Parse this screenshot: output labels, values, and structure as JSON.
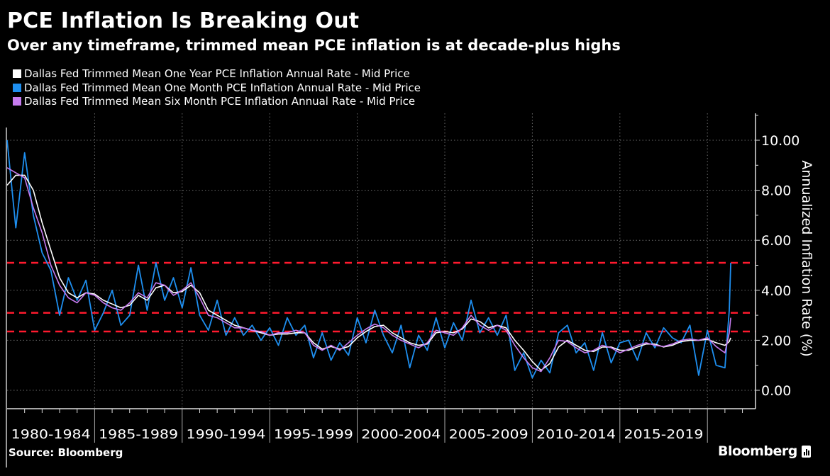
{
  "header": {
    "title": "PCE Inflation Is Breaking Out",
    "subtitle": "Over any timeframe, trimmed mean PCE inflation is at decade-plus highs"
  },
  "footer": {
    "source": "Source: Bloomberg",
    "logo": "Bloomberg"
  },
  "colors": {
    "background": "#000000",
    "one_year": "#ffffff",
    "one_month": "#1e8ff0",
    "six_month": "#c77cf0",
    "reference": "#ff1a2e",
    "grid": "#777777"
  },
  "chart_data": {
    "type": "line",
    "title": "PCE Inflation Is Breaking Out",
    "subtitle": "Over any timeframe, trimmed mean PCE inflation is at decade-plus highs",
    "xlabel": "",
    "ylabel": "Annualized Inflation Rate (%)",
    "ylim": [
      -0.75,
      11.1
    ],
    "xlim": [
      "1980-01",
      "2022-06"
    ],
    "y_ticks": [
      "0.00",
      "2.00",
      "4.00",
      "6.00",
      "8.00",
      "10.00"
    ],
    "x_tick_labels": [
      "1980-1984",
      "1985-1989",
      "1990-1994",
      "1995-1999",
      "2000-2004",
      "2005-2009",
      "2010-2014",
      "2015-2019"
    ],
    "y_axis_side": "right",
    "grid": true,
    "legend_position": "top-left",
    "reference_lines": [
      5.1,
      3.1,
      2.35
    ],
    "x": [
      "1980-01",
      "1980-07",
      "1981-01",
      "1981-07",
      "1982-01",
      "1982-07",
      "1983-01",
      "1983-07",
      "1984-01",
      "1984-07",
      "1985-01",
      "1985-07",
      "1986-01",
      "1986-07",
      "1987-01",
      "1987-07",
      "1988-01",
      "1988-07",
      "1989-01",
      "1989-07",
      "1990-01",
      "1990-07",
      "1991-01",
      "1991-07",
      "1992-01",
      "1992-07",
      "1993-01",
      "1993-07",
      "1994-01",
      "1994-07",
      "1995-01",
      "1995-07",
      "1996-01",
      "1996-07",
      "1997-01",
      "1997-07",
      "1998-01",
      "1998-07",
      "1999-01",
      "1999-07",
      "2000-01",
      "2000-07",
      "2001-01",
      "2001-07",
      "2002-01",
      "2002-07",
      "2003-01",
      "2003-07",
      "2004-01",
      "2004-07",
      "2005-01",
      "2005-07",
      "2006-01",
      "2006-07",
      "2007-01",
      "2007-07",
      "2008-01",
      "2008-07",
      "2009-01",
      "2009-07",
      "2010-01",
      "2010-07",
      "2011-01",
      "2011-07",
      "2012-01",
      "2012-07",
      "2013-01",
      "2013-07",
      "2014-01",
      "2014-07",
      "2015-01",
      "2015-07",
      "2016-01",
      "2016-07",
      "2017-01",
      "2017-07",
      "2018-01",
      "2018-07",
      "2019-01",
      "2019-07",
      "2020-01",
      "2020-07",
      "2021-01",
      "2021-04",
      "2021-05"
    ],
    "series": [
      {
        "name": "Dallas Fed Trimmed Mean One Year PCE Inflation Annual Rate - Mid Price",
        "color": "#ffffff",
        "values": [
          8.2,
          8.6,
          8.6,
          8.0,
          6.7,
          5.6,
          4.5,
          3.9,
          3.7,
          3.9,
          3.85,
          3.6,
          3.45,
          3.3,
          3.4,
          3.8,
          3.6,
          4.1,
          4.2,
          3.9,
          3.95,
          4.2,
          3.9,
          3.2,
          3.0,
          2.8,
          2.6,
          2.5,
          2.4,
          2.3,
          2.2,
          2.25,
          2.25,
          2.3,
          2.3,
          1.9,
          1.65,
          1.75,
          1.65,
          1.75,
          2.1,
          2.35,
          2.55,
          2.6,
          2.3,
          2.1,
          1.9,
          1.8,
          1.85,
          2.3,
          2.35,
          2.3,
          2.45,
          2.85,
          2.75,
          2.5,
          2.6,
          2.5,
          2.0,
          1.6,
          1.15,
          0.8,
          1.07,
          1.73,
          2.0,
          1.8,
          1.6,
          1.55,
          1.73,
          1.73,
          1.6,
          1.6,
          1.73,
          1.85,
          1.85,
          1.73,
          1.8,
          1.95,
          2.0,
          2.0,
          2.04,
          1.9,
          1.8,
          1.95,
          2.1
        ]
      },
      {
        "name": "Dallas Fed Trimmed Mean One Month PCE Inflation Annual Rate - Mid Price",
        "color": "#1e8ff0",
        "values": [
          10.0,
          6.5,
          9.5,
          7.0,
          5.5,
          4.8,
          3.0,
          4.5,
          3.6,
          4.4,
          2.4,
          3.1,
          4.0,
          2.6,
          3.0,
          5.0,
          3.2,
          5.1,
          3.6,
          4.5,
          3.3,
          4.9,
          3.0,
          2.4,
          3.6,
          2.2,
          2.9,
          2.2,
          2.6,
          2.0,
          2.5,
          1.8,
          2.9,
          2.2,
          2.6,
          1.3,
          2.3,
          1.2,
          1.9,
          1.4,
          2.9,
          1.9,
          3.2,
          2.2,
          1.5,
          2.6,
          0.9,
          2.2,
          1.6,
          2.9,
          1.7,
          2.7,
          2.0,
          3.6,
          2.3,
          2.9,
          2.2,
          3.0,
          0.8,
          1.5,
          0.5,
          1.2,
          0.7,
          2.3,
          2.6,
          1.5,
          1.9,
          0.8,
          2.3,
          1.1,
          1.9,
          2.0,
          1.2,
          2.3,
          1.7,
          2.5,
          2.1,
          1.9,
          2.6,
          0.6,
          2.4,
          1.0,
          0.9,
          3.2,
          5.1
        ]
      },
      {
        "name": "Dallas Fed Trimmed Mean Six Month PCE Inflation Annual Rate - Mid Price",
        "color": "#c77cf0",
        "values": [
          8.9,
          8.7,
          8.5,
          7.3,
          6.3,
          5.0,
          4.2,
          3.7,
          3.5,
          3.9,
          3.8,
          3.5,
          3.3,
          3.2,
          3.5,
          3.9,
          3.7,
          4.3,
          4.2,
          3.8,
          4.0,
          4.3,
          3.7,
          3.0,
          2.9,
          2.7,
          2.5,
          2.5,
          2.4,
          2.35,
          2.2,
          2.3,
          2.3,
          2.4,
          2.3,
          1.8,
          1.6,
          1.8,
          1.6,
          1.9,
          2.2,
          2.45,
          2.65,
          2.5,
          2.2,
          2.0,
          1.85,
          1.7,
          1.9,
          2.4,
          2.3,
          2.2,
          2.5,
          3.0,
          2.6,
          2.4,
          2.6,
          2.4,
          1.8,
          1.3,
          0.9,
          0.75,
          1.3,
          2.0,
          1.95,
          1.7,
          1.5,
          1.6,
          1.8,
          1.7,
          1.5,
          1.65,
          1.8,
          1.9,
          1.8,
          1.75,
          1.85,
          2.0,
          2.05,
          2.0,
          2.1,
          1.75,
          1.5,
          2.3,
          2.9
        ]
      }
    ]
  }
}
